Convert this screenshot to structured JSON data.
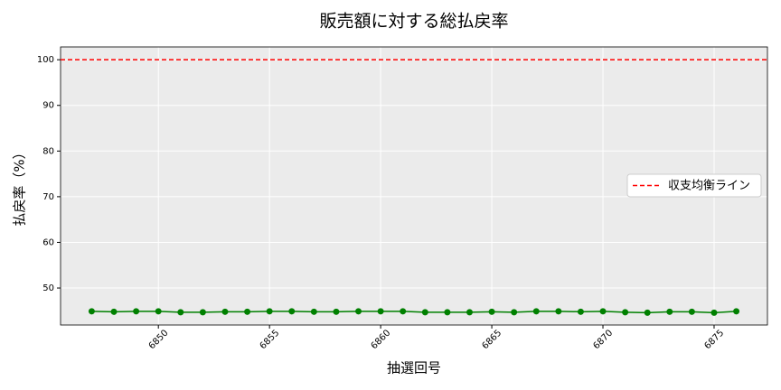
{
  "chart_data": {
    "type": "line",
    "title": "販売額に対する総払戻率",
    "xlabel": "抽選回号",
    "ylabel": "払戻率（%）",
    "x": [
      6847,
      6848,
      6849,
      6850,
      6851,
      6852,
      6853,
      6854,
      6855,
      6856,
      6857,
      6858,
      6859,
      6860,
      6861,
      6862,
      6863,
      6864,
      6865,
      6866,
      6867,
      6868,
      6869,
      6870,
      6871,
      6872,
      6873,
      6874,
      6875,
      6876
    ],
    "values": [
      44.9,
      44.8,
      44.9,
      44.9,
      44.7,
      44.7,
      44.8,
      44.8,
      44.9,
      44.9,
      44.8,
      44.8,
      44.9,
      44.9,
      44.9,
      44.7,
      44.7,
      44.7,
      44.8,
      44.7,
      44.9,
      44.9,
      44.8,
      44.9,
      44.7,
      44.6,
      44.8,
      44.8,
      44.6,
      44.9
    ],
    "color": "green",
    "reference_line": {
      "value": 100,
      "label": "収支均衡ライン",
      "color": "red"
    },
    "legend": "right",
    "xlim": [
      6845.6,
      6877.4
    ],
    "xticks": [
      6850,
      6855,
      6860,
      6865,
      6870,
      6875
    ],
    "ylim": [
      41.9,
      102.8
    ],
    "yticks": [
      50,
      60,
      70,
      80,
      90,
      100
    ],
    "grid": true
  }
}
